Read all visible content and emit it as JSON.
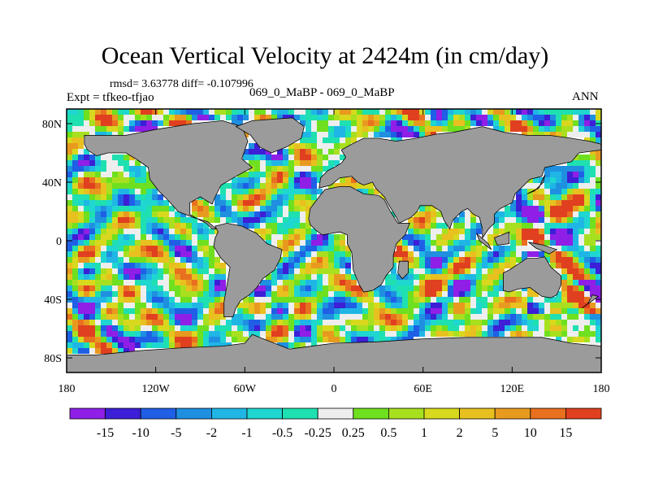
{
  "title": "Ocean Vertical Velocity at 2424m (in cm/day)",
  "stats": "rmsd= 3.63778 diff= -0.107996",
  "left_label": "Expt = tfkeo-tfjao",
  "center_label": "069_0_MaBP - 069_0_MaBP",
  "right_label": "ANN",
  "lat_ticks": [
    "80N",
    "40N",
    "0",
    "40S",
    "80S"
  ],
  "lon_ticks": [
    "180",
    "120W",
    "60W",
    "0",
    "60E",
    "120E",
    "180"
  ],
  "colorbar": {
    "colors": [
      "#8f1fe6",
      "#3c1fd6",
      "#1f5fe6",
      "#1f8fe0",
      "#1fb6e6",
      "#1fd6d0",
      "#1fe0b0",
      "#eeeeee",
      "#6fe01f",
      "#a8e01f",
      "#d8d81f",
      "#e8c01f",
      "#e89a1f",
      "#e8701f",
      "#e0401f"
    ],
    "labels": [
      "-15",
      "-10",
      "-5",
      "-2",
      "-1",
      "-0.5",
      "-0.25",
      "0.25",
      "0.5",
      "1",
      "2",
      "5",
      "10",
      "15"
    ]
  },
  "colors": {
    "land": "#9b9b9b",
    "frame": "#000000"
  }
}
